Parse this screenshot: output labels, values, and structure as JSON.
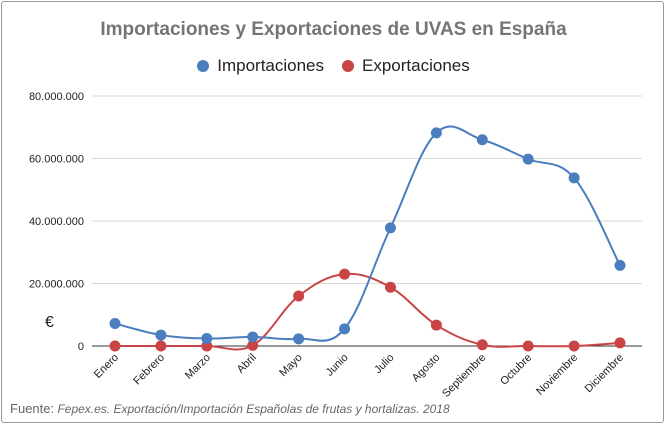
{
  "chart_data": {
    "type": "line",
    "title": "Importaciones y Exportaciones de UVAS en España",
    "categories": [
      "Enero",
      "Febrero",
      "Marzo",
      "Abril",
      "Mayo",
      "Junio",
      "Julio",
      "Agosto",
      "Septiembre",
      "Octubre",
      "Noviembre",
      "Diciembre"
    ],
    "series": [
      {
        "name": "Importaciones",
        "color": "#4a7ebf",
        "values": [
          7200000,
          3500000,
          2400000,
          2900000,
          2300000,
          5500000,
          37800000,
          68200000,
          66000000,
          59800000,
          53800000,
          25800000
        ]
      },
      {
        "name": "Exportaciones",
        "color": "#c94444",
        "values": [
          0,
          0,
          0,
          200000,
          16000000,
          23000000,
          18800000,
          6700000,
          400000,
          0,
          0,
          1000000
        ]
      }
    ],
    "ylim": [
      0,
      80000000
    ],
    "yticks": [
      "0",
      "20.000.000",
      "40.000.000",
      "60.000.000",
      "80.000.000"
    ],
    "ylabel": "€",
    "grid": true,
    "legend_position": "top",
    "smooth": true
  },
  "source": {
    "label": "Fuente:",
    "text": "Fepex.es. Exportación/Importación Españolas de frutas y hortalizas. 2018"
  }
}
